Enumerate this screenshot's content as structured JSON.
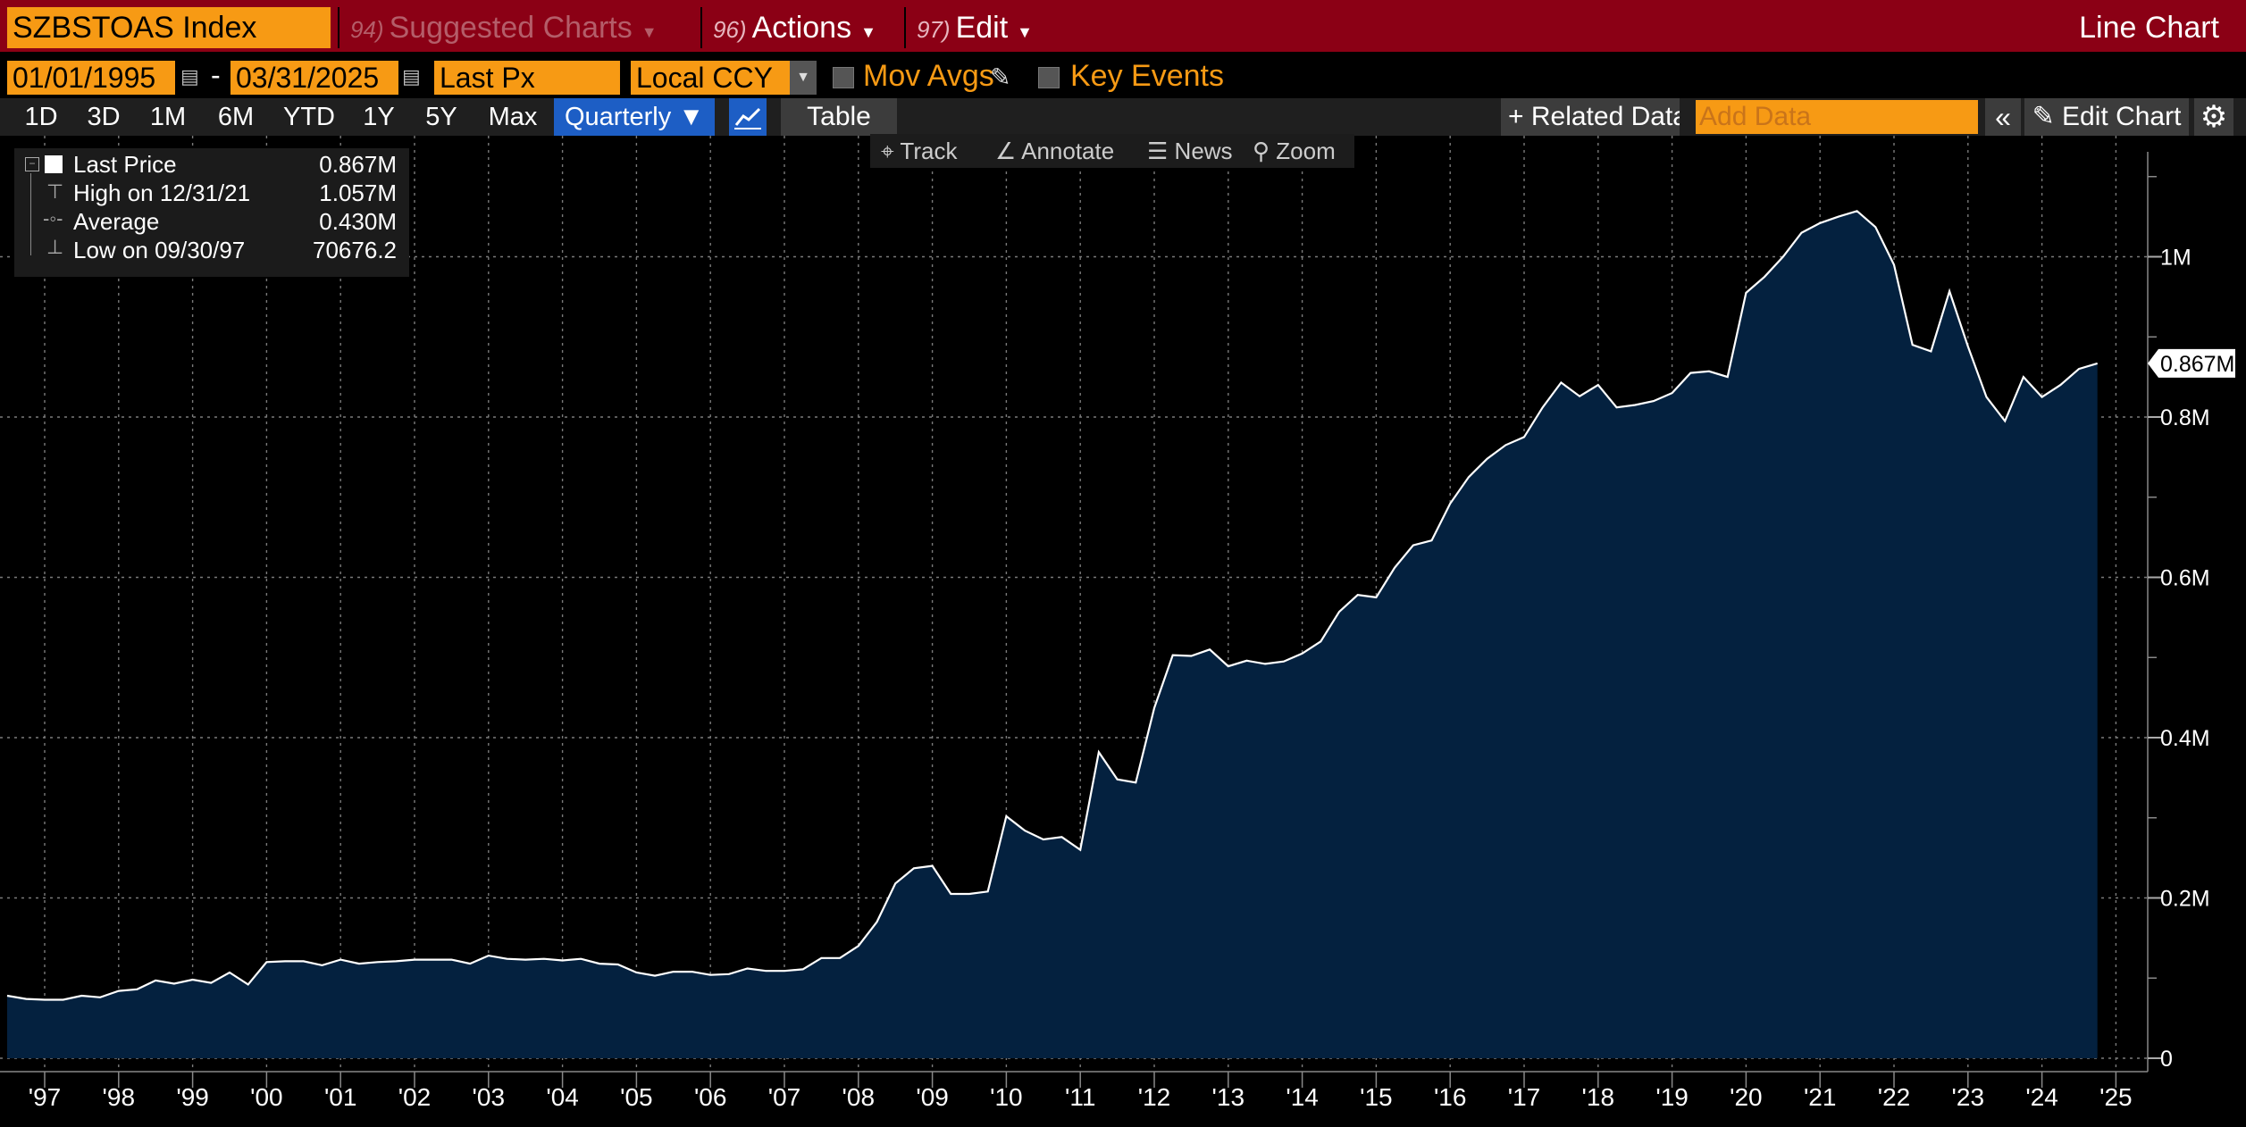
{
  "header": {
    "ticker": "SZBSTOAS Index",
    "suggested": {
      "num": "94)",
      "label": "Suggested Charts"
    },
    "actions": {
      "num": "96)",
      "label": "Actions"
    },
    "edit": {
      "num": "97)",
      "label": "Edit"
    },
    "chart_type": "Line Chart"
  },
  "controls": {
    "start_date": "01/01/1995",
    "end_date": "03/31/2025",
    "field": "Last Px",
    "currency": "Local CCY",
    "mov_avgs": "Mov Avgs",
    "key_events": "Key Events"
  },
  "ranges": [
    "1D",
    "3D",
    "1M",
    "6M",
    "YTD",
    "1Y",
    "5Y",
    "Max"
  ],
  "frequency": "Quarterly",
  "table_label": "Table",
  "related_data": "Related Data",
  "add_data_placeholder": "Add Data",
  "edit_chart": "Edit Chart",
  "tools": [
    "Track",
    "Annotate",
    "News",
    "Zoom"
  ],
  "legend": {
    "last_label": "Last Price",
    "last_value": "0.867M",
    "high_label": "High on 12/31/21",
    "high_value": "1.057M",
    "avg_label": "Average",
    "avg_value": "0.430M",
    "low_label": "Low on 09/30/97",
    "low_value": "70676.2"
  },
  "colors": {
    "accent": "#f79a14",
    "header": "#8b0015",
    "area": "#04213f",
    "line": "#ffffff",
    "select": "#1d5ec5"
  },
  "chart_data": {
    "type": "area",
    "series": [
      {
        "name": "Last Price",
        "values": [
          0.078,
          0.074,
          0.073,
          0.073,
          0.078,
          0.076,
          0.084,
          0.086,
          0.097,
          0.093,
          0.098,
          0.094,
          0.107,
          0.092,
          0.12,
          0.121,
          0.121,
          0.116,
          0.123,
          0.118,
          0.12,
          0.121,
          0.123,
          0.123,
          0.123,
          0.118,
          0.128,
          0.124,
          0.123,
          0.124,
          0.122,
          0.124,
          0.118,
          0.117,
          0.107,
          0.103,
          0.108,
          0.108,
          0.104,
          0.105,
          0.112,
          0.109,
          0.109,
          0.111,
          0.125,
          0.125,
          0.14,
          0.17,
          0.218,
          0.237,
          0.24,
          0.205,
          0.205,
          0.208,
          0.302,
          0.284,
          0.273,
          0.276,
          0.26,
          0.382,
          0.348,
          0.344,
          0.437,
          0.503,
          0.502,
          0.51,
          0.489,
          0.496,
          0.492,
          0.495,
          0.505,
          0.52,
          0.557,
          0.578,
          0.575,
          0.612,
          0.64,
          0.646,
          0.692,
          0.725,
          0.748,
          0.765,
          0.775,
          0.812,
          0.843,
          0.826,
          0.84,
          0.812,
          0.815,
          0.82,
          0.83,
          0.855,
          0.857,
          0.85,
          0.955,
          0.975,
          1.0,
          1.03,
          1.042,
          1.05,
          1.057,
          1.037,
          0.99,
          0.89,
          0.882,
          0.957,
          0.888,
          0.825,
          0.795,
          0.85,
          0.825,
          0.84,
          0.86,
          0.867
        ]
      }
    ],
    "start_year": 1996.5,
    "quarter_step": 0.25,
    "x_ticks": [
      "'97",
      "'98",
      "'99",
      "'00",
      "'01",
      "'02",
      "'03",
      "'04",
      "'05",
      "'06",
      "'07",
      "'08",
      "'09",
      "'10",
      "'11",
      "'12",
      "'13",
      "'14",
      "'15",
      "'16",
      "'17",
      "'18",
      "'19",
      "'20",
      "'21",
      "'22",
      "'23",
      "'24",
      "'25"
    ],
    "y_ticks": [
      "0",
      "0.2M",
      "0.4M",
      "0.6M",
      "0.8M",
      "1M"
    ],
    "y_tick_values": [
      0,
      0.2,
      0.4,
      0.6,
      0.8,
      1.0
    ],
    "ylim": [
      0,
      1.12
    ],
    "last_value_label": "0.867M",
    "grid": true
  }
}
